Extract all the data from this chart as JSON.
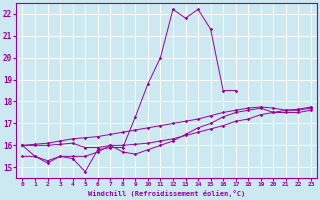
{
  "x": [
    0,
    1,
    2,
    3,
    4,
    5,
    6,
    7,
    8,
    9,
    10,
    11,
    12,
    13,
    14,
    15,
    16,
    17,
    18,
    19,
    20,
    21,
    22,
    23
  ],
  "line1": [
    16.0,
    15.5,
    15.3,
    15.5,
    15.4,
    14.8,
    15.8,
    15.9,
    15.9,
    17.3,
    18.8,
    20.0,
    22.2,
    21.8,
    22.2,
    21.3,
    18.5,
    18.5,
    null,
    null,
    null,
    null,
    null,
    null
  ],
  "line2": [
    15.5,
    15.5,
    15.2,
    15.5,
    15.5,
    15.5,
    15.7,
    16.0,
    15.7,
    15.6,
    15.8,
    16.0,
    16.2,
    16.5,
    16.8,
    17.0,
    17.3,
    17.5,
    17.6,
    17.7,
    17.5,
    17.5,
    17.5,
    17.6
  ],
  "line3": [
    16.0,
    16.05,
    16.1,
    16.2,
    16.3,
    16.35,
    16.4,
    16.5,
    16.6,
    16.7,
    16.8,
    16.9,
    17.0,
    17.1,
    17.2,
    17.35,
    17.5,
    17.6,
    17.7,
    17.75,
    17.7,
    17.6,
    17.65,
    17.75
  ],
  "line4": [
    16.0,
    16.0,
    16.0,
    16.05,
    16.1,
    15.9,
    15.9,
    16.0,
    16.0,
    16.05,
    16.1,
    16.2,
    16.3,
    16.45,
    16.6,
    16.75,
    16.9,
    17.1,
    17.2,
    17.4,
    17.5,
    17.6,
    17.6,
    17.7
  ],
  "color": "#990099",
  "bg_color": "#cce8f0",
  "grid_color": "#ffffff",
  "xlabel": "Windchill (Refroidissement éolien,°C)",
  "ylim": [
    14.5,
    22.5
  ],
  "xlim": [
    -0.5,
    23.5
  ],
  "yticks": [
    15,
    16,
    17,
    18,
    19,
    20,
    21,
    22
  ],
  "xticks": [
    0,
    1,
    2,
    3,
    4,
    5,
    6,
    7,
    8,
    9,
    10,
    11,
    12,
    13,
    14,
    15,
    16,
    17,
    18,
    19,
    20,
    21,
    22,
    23
  ]
}
